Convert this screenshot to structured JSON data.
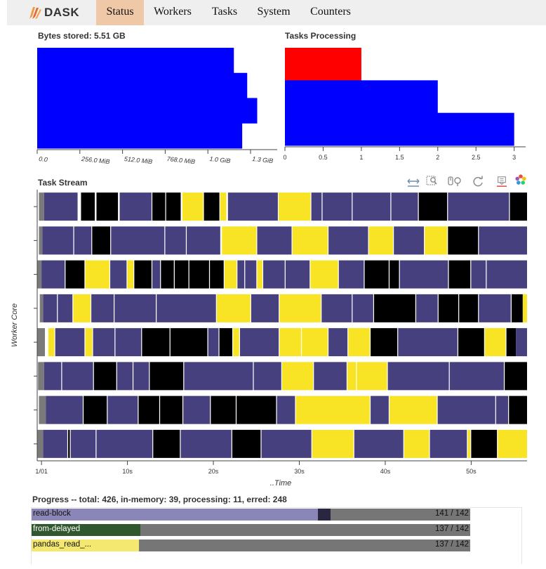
{
  "app": {
    "brand": "DASK",
    "logo_icon": "dask-logo-icon"
  },
  "nav": {
    "items": [
      {
        "label": "Status",
        "active": true
      },
      {
        "label": "Workers",
        "active": false
      },
      {
        "label": "Tasks",
        "active": false
      },
      {
        "label": "System",
        "active": false
      },
      {
        "label": "Counters",
        "active": false
      }
    ]
  },
  "colors": {
    "accent_nav": "#efc9a7",
    "bar_blue": "#0000ff",
    "processing_red": "#ff0000",
    "stream_purple": "#46407e",
    "stream_yellow": "#f8e425",
    "stream_black": "#000000",
    "progress_purple": "#8a86b7",
    "progress_green": "#30572d",
    "progress_yellow": "#f5e871",
    "progress_gray": "#767676"
  },
  "panels": {
    "bytes_title": "Bytes stored: 5.51 GB",
    "tasks_title": "Tasks Processing",
    "stream_title": "Task Stream",
    "stream_ylabel": "Worker Core",
    "stream_xlabel": "..Time"
  },
  "chart_data": [
    {
      "type": "bar",
      "orientation": "horizontal",
      "title": "Bytes stored: 5.51 GB",
      "xlabel": "",
      "ylabel": "",
      "unit": "MiB",
      "xlim": [
        0,
        1440
      ],
      "values_mib": [
        1180,
        1260,
        1320,
        1230
      ],
      "tick_values": [
        0,
        256,
        512,
        768,
        1024,
        1280
      ],
      "tick_labels": [
        "0.0",
        "256.0 MiB",
        "512.0 MiB",
        "768.0 MiB",
        "1.0 GiB",
        "1.3 GiB"
      ]
    },
    {
      "type": "bar",
      "orientation": "horizontal",
      "title": "Tasks Processing",
      "xlabel": "",
      "ylabel": "",
      "xlim": [
        0,
        3.15
      ],
      "bars": [
        {
          "value": 1,
          "color": "#ff0000"
        },
        {
          "value": 2,
          "color": "#0000ff"
        },
        {
          "value": 3,
          "color": "#0000ff"
        }
      ],
      "tick_values": [
        0,
        0.5,
        1,
        1.5,
        2,
        2.5,
        3
      ],
      "tick_labels": [
        "0",
        "0.5",
        "1",
        "1.5",
        "2",
        "2.5",
        "3"
      ]
    },
    {
      "type": "gantt",
      "title": "Task Stream",
      "xlabel": "..Time",
      "ylabel": "Worker Core",
      "x_unit": "seconds",
      "xlim": [
        -0.5,
        56.5
      ],
      "tick_values": [
        0,
        10,
        20,
        30,
        40,
        50
      ],
      "tick_labels": [
        "1/01",
        "10s",
        "20s",
        "30s",
        "40s",
        "50s"
      ],
      "legend": {
        "P": "#46407e",
        "Y": "#f8e425",
        "B": "#000000",
        "G": "#7a7a7a"
      },
      "rows": [
        {
          "segments": [
            [
              -0.3,
              0.3,
              "G"
            ],
            [
              0.3,
              4.2,
              "P"
            ],
            [
              4.6,
              6.2,
              "B"
            ],
            [
              6.4,
              8.9,
              "B"
            ],
            [
              9.1,
              12.8,
              "P"
            ],
            [
              12.9,
              14.4,
              "B"
            ],
            [
              14.5,
              16.2,
              "B"
            ],
            [
              16.4,
              18.8,
              "Y"
            ],
            [
              18.9,
              20.7,
              "B"
            ],
            [
              20.8,
              21.5,
              "Y"
            ],
            [
              21.7,
              27.5,
              "P"
            ],
            [
              27.6,
              31.3,
              "Y"
            ],
            [
              31.4,
              32.6,
              "P"
            ],
            [
              32.7,
              36.1,
              "P"
            ],
            [
              36.2,
              40.6,
              "P"
            ],
            [
              40.7,
              43.8,
              "P"
            ],
            [
              43.9,
              47.2,
              "B"
            ],
            [
              47.3,
              54.4,
              "P"
            ],
            [
              54.5,
              56.5,
              "B"
            ]
          ]
        },
        {
          "segments": [
            [
              -0.3,
              0.1,
              "G"
            ],
            [
              0.1,
              3.7,
              "P"
            ],
            [
              3.8,
              5.8,
              "P"
            ],
            [
              5.9,
              8.0,
              "B"
            ],
            [
              8.1,
              14.3,
              "P"
            ],
            [
              14.4,
              16.8,
              "P"
            ],
            [
              16.9,
              20.8,
              "P"
            ],
            [
              21.0,
              25.0,
              "Y"
            ],
            [
              25.1,
              29.1,
              "P"
            ],
            [
              29.2,
              33.3,
              "Y"
            ],
            [
              33.4,
              38.0,
              "P"
            ],
            [
              38.1,
              40.9,
              "Y"
            ],
            [
              41.0,
              44.5,
              "P"
            ],
            [
              44.6,
              47.2,
              "Y"
            ],
            [
              47.3,
              50.8,
              "B"
            ],
            [
              50.9,
              56.5,
              "P"
            ]
          ]
        },
        {
          "segments": [
            [
              -0.8,
              0.0,
              "G"
            ],
            [
              0.0,
              2.7,
              "P"
            ],
            [
              2.8,
              5.0,
              "B"
            ],
            [
              5.1,
              7.9,
              "Y"
            ],
            [
              8.0,
              9.9,
              "P"
            ],
            [
              10.0,
              10.7,
              "Y"
            ],
            [
              10.8,
              12.8,
              "B"
            ],
            [
              12.9,
              13.8,
              "P"
            ],
            [
              13.9,
              15.4,
              "B"
            ],
            [
              15.5,
              17.1,
              "B"
            ],
            [
              17.2,
              19.5,
              "B"
            ],
            [
              19.6,
              21.2,
              "B"
            ],
            [
              21.3,
              22.7,
              "Y"
            ],
            [
              22.8,
              23.6,
              "P"
            ],
            [
              23.7,
              25.0,
              "P"
            ],
            [
              25.1,
              25.7,
              "Y"
            ],
            [
              25.8,
              28.3,
              "P"
            ],
            [
              28.4,
              31.2,
              "P"
            ],
            [
              31.3,
              34.5,
              "Y"
            ],
            [
              34.6,
              37.5,
              "P"
            ],
            [
              37.6,
              40.4,
              "B"
            ],
            [
              40.5,
              41.6,
              "B"
            ],
            [
              41.7,
              47.3,
              "P"
            ],
            [
              47.4,
              49.9,
              "B"
            ],
            [
              50.0,
              51.7,
              "P"
            ],
            [
              51.8,
              56.5,
              "P"
            ]
          ]
        },
        {
          "segments": [
            [
              -0.2,
              0.2,
              "G"
            ],
            [
              0.2,
              1.8,
              "P"
            ],
            [
              1.9,
              3.6,
              "P"
            ],
            [
              3.7,
              5.7,
              "Y"
            ],
            [
              5.8,
              8.4,
              "P"
            ],
            [
              8.5,
              13.3,
              "P"
            ],
            [
              13.4,
              20.3,
              "P"
            ],
            [
              20.4,
              24.3,
              "Y"
            ],
            [
              24.4,
              27.6,
              "P"
            ],
            [
              27.7,
              32.5,
              "Y"
            ],
            [
              32.6,
              36.1,
              "P"
            ],
            [
              36.2,
              38.6,
              "P"
            ],
            [
              38.7,
              43.5,
              "B"
            ],
            [
              43.6,
              46.1,
              "P"
            ],
            [
              46.2,
              48.5,
              "B"
            ],
            [
              48.6,
              50.8,
              "B"
            ],
            [
              50.9,
              54.6,
              "P"
            ],
            [
              54.7,
              56.0,
              "B"
            ],
            [
              56.0,
              56.5,
              "Y"
            ]
          ]
        },
        {
          "segments": [
            [
              -0.6,
              0.4,
              "G"
            ],
            [
              0.8,
              1.5,
              "Y"
            ],
            [
              1.6,
              5.0,
              "P"
            ],
            [
              5.1,
              5.9,
              "Y"
            ],
            [
              6.0,
              8.5,
              "P"
            ],
            [
              8.6,
              11.6,
              "P"
            ],
            [
              11.7,
              14.9,
              "B"
            ],
            [
              15.0,
              19.3,
              "B"
            ],
            [
              19.4,
              20.6,
              "P"
            ],
            [
              20.7,
              22.2,
              "B"
            ],
            [
              22.3,
              23.0,
              "Y"
            ],
            [
              23.1,
              27.6,
              "P"
            ],
            [
              27.7,
              30.2,
              "Y"
            ],
            [
              30.3,
              33.3,
              "Y"
            ],
            [
              33.4,
              35.6,
              "P"
            ],
            [
              35.7,
              38.2,
              "Y"
            ],
            [
              38.3,
              41.4,
              "B"
            ],
            [
              41.5,
              48.4,
              "P"
            ],
            [
              48.5,
              51.5,
              "B"
            ],
            [
              51.6,
              54.0,
              "Y"
            ],
            [
              54.1,
              55.2,
              "B"
            ],
            [
              55.2,
              56.5,
              "P"
            ]
          ]
        },
        {
          "segments": [
            [
              -0.4,
              0.3,
              "G"
            ],
            [
              0.3,
              2.3,
              "P"
            ],
            [
              2.4,
              6.0,
              "P"
            ],
            [
              6.1,
              8.7,
              "B"
            ],
            [
              8.8,
              10.6,
              "P"
            ],
            [
              10.7,
              12.5,
              "P"
            ],
            [
              12.6,
              16.5,
              "B"
            ],
            [
              16.6,
              24.6,
              "P"
            ],
            [
              24.7,
              27.9,
              "P"
            ],
            [
              28.0,
              31.6,
              "Y"
            ],
            [
              31.7,
              35.5,
              "P"
            ],
            [
              35.6,
              36.6,
              "Y"
            ],
            [
              36.7,
              40.2,
              "Y"
            ],
            [
              40.3,
              47.4,
              "P"
            ],
            [
              47.5,
              53.8,
              "P"
            ],
            [
              53.9,
              56.5,
              "B"
            ]
          ]
        },
        {
          "segments": [
            [
              -0.3,
              0.5,
              "G"
            ],
            [
              0.5,
              4.8,
              "P"
            ],
            [
              4.9,
              7.6,
              "B"
            ],
            [
              7.7,
              11.2,
              "P"
            ],
            [
              11.3,
              13.7,
              "B"
            ],
            [
              13.8,
              16.4,
              "B"
            ],
            [
              16.5,
              19.6,
              "P"
            ],
            [
              19.7,
              22.6,
              "B"
            ],
            [
              22.7,
              27.3,
              "B"
            ],
            [
              27.4,
              29.5,
              "P"
            ],
            [
              29.6,
              38.2,
              "Y"
            ],
            [
              38.3,
              40.4,
              "P"
            ],
            [
              40.5,
              46.0,
              "Y"
            ],
            [
              46.1,
              52.8,
              "P"
            ],
            [
              52.9,
              54.3,
              "P"
            ],
            [
              54.4,
              56.5,
              "B"
            ]
          ]
        },
        {
          "segments": [
            [
              -0.8,
              0.2,
              "G"
            ],
            [
              0.2,
              3.0,
              "P"
            ],
            [
              3.1,
              3.3,
              "B"
            ],
            [
              3.4,
              6.3,
              "P"
            ],
            [
              6.4,
              12.9,
              "P"
            ],
            [
              13.0,
              16.1,
              "B"
            ],
            [
              16.2,
              22.1,
              "P"
            ],
            [
              22.2,
              25.5,
              "B"
            ],
            [
              25.6,
              31.4,
              "P"
            ],
            [
              31.5,
              36.3,
              "Y"
            ],
            [
              36.4,
              42.1,
              "P"
            ],
            [
              42.2,
              45.1,
              "Y"
            ],
            [
              45.2,
              49.5,
              "P"
            ],
            [
              49.6,
              49.9,
              "Y"
            ],
            [
              50.0,
              53.0,
              "B"
            ],
            [
              53.1,
              56.5,
              "Y"
            ]
          ]
        }
      ]
    }
  ],
  "toolbar": {
    "icons": [
      "pan-icon",
      "box-zoom-icon",
      "wheel-zoom-icon",
      "reset-icon",
      "hover-icon",
      "bokeh-logo-icon"
    ]
  },
  "progress": {
    "title": "Progress -- total: 426, in-memory: 39, processing: 11, erred: 248",
    "rows": [
      {
        "name": "read-block",
        "count": "141 / 142",
        "memory_fraction": 0.652,
        "processing_fraction": 0.03,
        "fill_color": "#8a86b7",
        "dark_color": "#29263f"
      },
      {
        "name": "from-delayed",
        "count": "137 / 142",
        "memory_fraction": 0.248,
        "processing_fraction": 0.0,
        "fill_color": "#30572d",
        "dark_color": "#1a2e18"
      },
      {
        "name": "pandas_read_...",
        "count": "137 / 142",
        "memory_fraction": 0.245,
        "processing_fraction": 0.0,
        "fill_color": "#f5e871",
        "dark_color": "#222222"
      }
    ]
  }
}
